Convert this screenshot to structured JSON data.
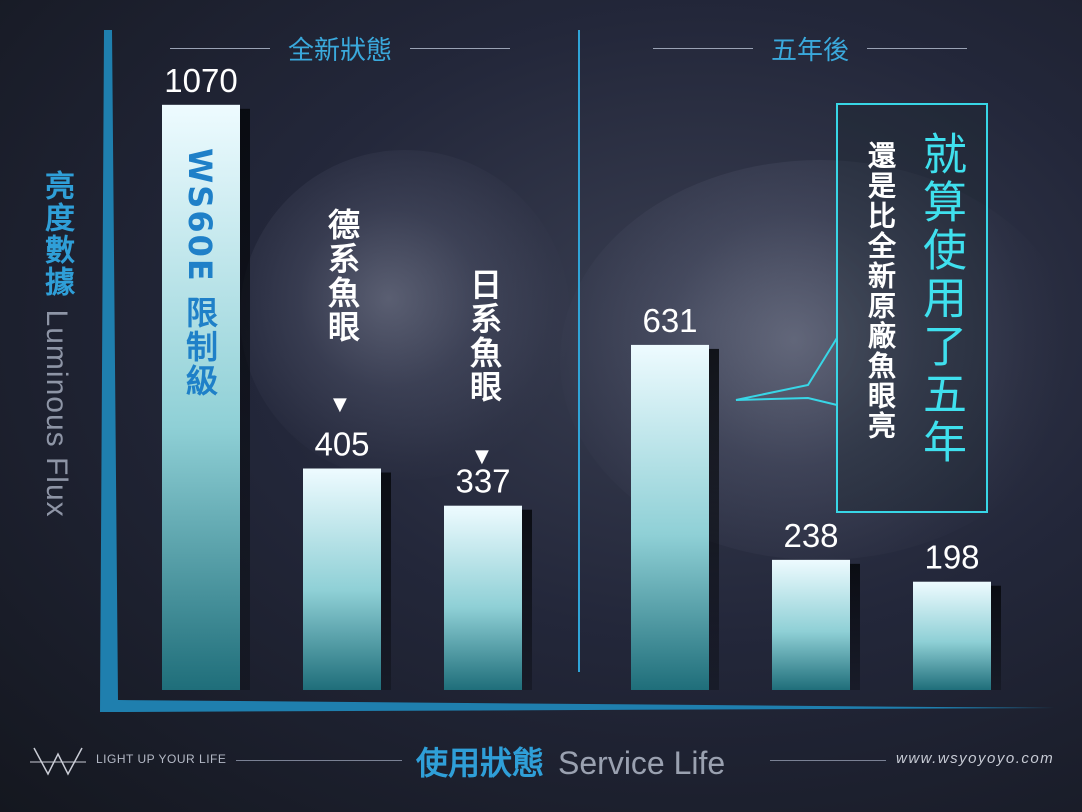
{
  "chart_data": {
    "type": "bar",
    "ylabel_zh": "亮度數據",
    "ylabel_en": "Luminous Flux",
    "xlabel_zh": "使用狀態",
    "xlabel_en": "Service Life",
    "groups": [
      {
        "label": "全新狀態",
        "bars": [
          {
            "name": "WS60E 限制級",
            "value": 1070
          },
          {
            "name": "德系魚眼",
            "value": 405
          },
          {
            "name": "日系魚眼",
            "value": 337
          }
        ]
      },
      {
        "label": "五年後",
        "bars": [
          {
            "name": "WS60E 限制級",
            "value": 631
          },
          {
            "name": "德系魚眼",
            "value": 238
          },
          {
            "name": "日系魚眼",
            "value": 198
          }
        ]
      }
    ],
    "ylim": [
      0,
      1130
    ],
    "grid": false,
    "legend": "none"
  },
  "labels": {
    "ws60e": "WS60E 限制級",
    "german": "德系魚眼",
    "japanese": "日系魚眼",
    "arrow": "▼"
  },
  "callout": {
    "headline": "就算使用了五年",
    "sub": "還是比全新原廠魚眼亮"
  },
  "footer": {
    "tagline": "LIGHT UP YOUR LIFE",
    "url": "www.wsyoyoyo.com"
  },
  "colors": {
    "accent": "#2f9fd8",
    "callout": "#38d6e6",
    "bar_top": "#eefbff",
    "bar_bottom": "#1f6e7a"
  }
}
